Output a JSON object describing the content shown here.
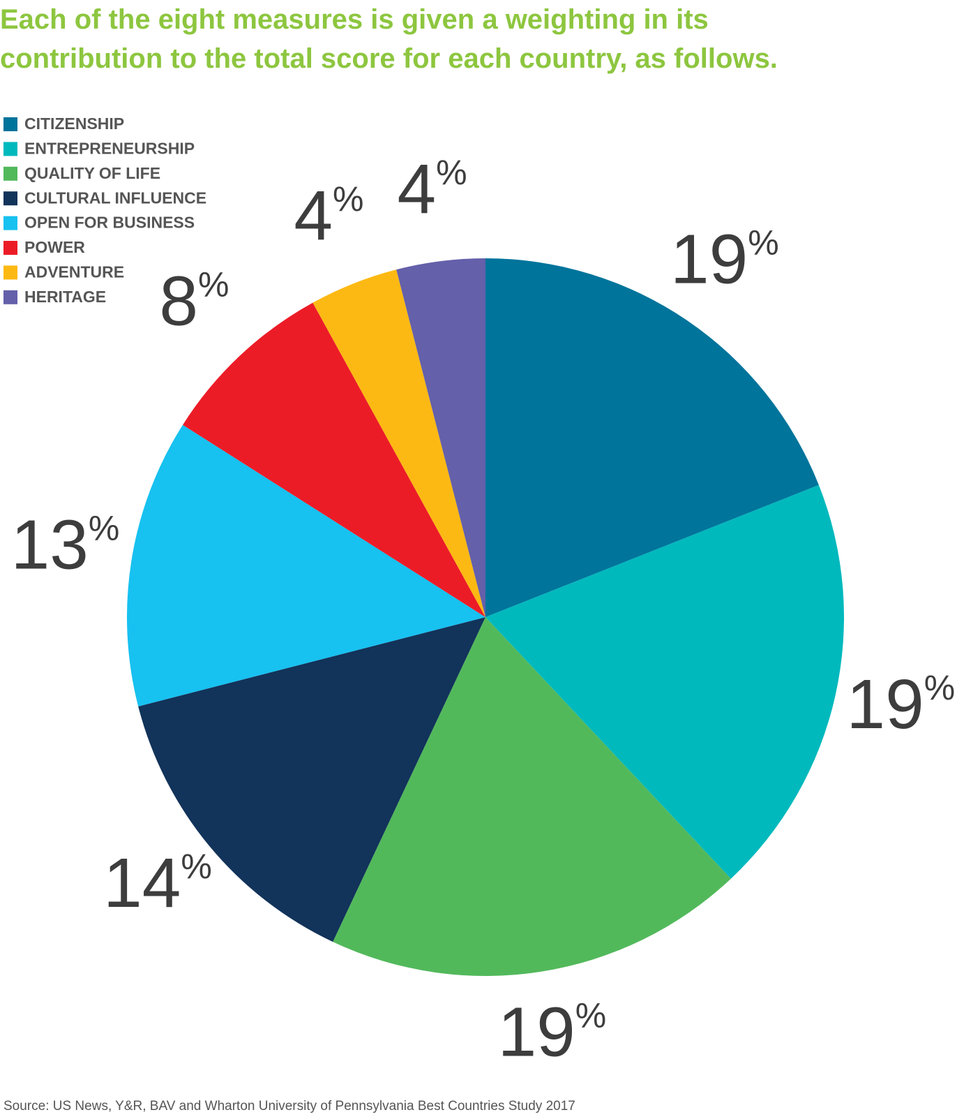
{
  "chart_data": {
    "type": "pie",
    "title": "Each of the eight measures is given a weighting in its contribution to the total score for each country, as follows.",
    "categories": [
      "CITIZENSHIP",
      "ENTREPRENEURSHIP",
      "QUALITY OF LIFE",
      "CULTURAL INFLUENCE",
      "OPEN FOR BUSINESS",
      "POWER",
      "ADVENTURE",
      "HERITAGE"
    ],
    "values": [
      19,
      19,
      19,
      14,
      13,
      8,
      4,
      4
    ],
    "value_labels": [
      "19%",
      "19%",
      "19%",
      "14%",
      "13%",
      "8%",
      "4%",
      "4%"
    ],
    "colors": [
      "#00749b",
      "#00b9bd",
      "#52b95b",
      "#12335a",
      "#17c1f0",
      "#ec1c27",
      "#fdb913",
      "#6460aa"
    ],
    "legend": "top-left",
    "source": "Source: US News, Y&R, BAV and Wharton University of Pennsylvania Best Countries Study 2017"
  }
}
